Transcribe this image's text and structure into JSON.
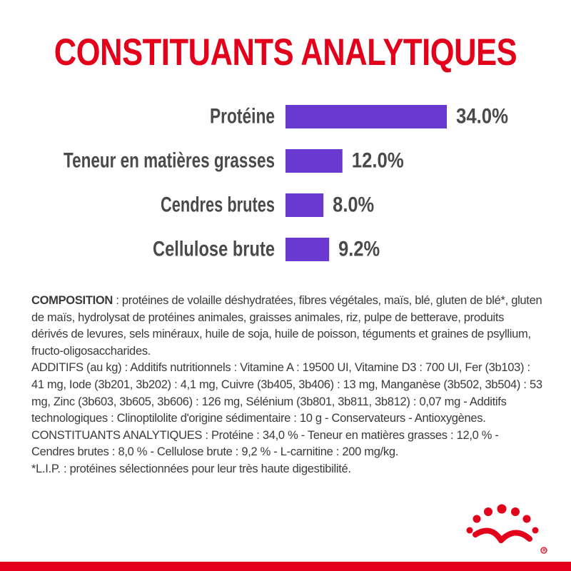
{
  "colors": {
    "brand_red": "#e2001a",
    "bar_purple": "#6a3ad0",
    "label_gray": "#4a4a4a"
  },
  "header": {
    "title": "CONSTITUANTS ANALYTIQUES"
  },
  "chart_data": {
    "type": "bar",
    "orientation": "horizontal",
    "title": "CONSTITUANTS ANALYTIQUES",
    "categories": [
      "Protéine",
      "Teneur en matières grasses",
      "Cendres brutes",
      "Cellulose brute"
    ],
    "values": [
      34.0,
      12.0,
      8.0,
      9.2
    ],
    "value_labels": [
      "34.0%",
      "12.0%",
      "8.0%",
      "9.2%"
    ],
    "unit": "%",
    "grid": false,
    "legend": "none"
  },
  "composition": {
    "composition_label": "COMPOSITION",
    "composition_text": " : protéines de volaille déshydratées, fibres végétales, maïs, blé, gluten de blé*, gluten de maïs, hydrolysat de protéines animales, graisses animales, riz, pulpe de betterave, produits dérivés de levures, sels minéraux, huile de soja, huile de poisson, téguments et graines de psyllium, fructo-oligosaccharides.",
    "additifs_text": "ADDITIFS (au kg) : Additifs nutritionnels : Vitamine A : 19500 UI, Vitamine D3 : 700 UI, Fer (3b103) : 41 mg, Iode (3b201, 3b202) : 4,1 mg, Cuivre (3b405, 3b406) : 13 mg, Manganèse (3b502, 3b504) : 53 mg, Zinc (3b603, 3b605, 3b606) : 126 mg, Sélénium (3b801, 3b811, 3b812) : 0,07 mg - Additifs technologiques : Clinoptilolite d'origine sédimentaire : 10 g - Conservateurs - Antioxygènes.",
    "constituants_text": "CONSTITUANTS ANALYTIQUES : Protéine : 34,0 % - Teneur en matières grasses : 12,0 % - Cendres brutes : 8,0 % - Cellulose brute : 9,2 % - L-carnitine : 200 mg/kg.",
    "footnote_text": "*L.I.P. : protéines sélectionnées pour leur très haute digestibilité."
  },
  "brand": {
    "logo_icon": "royal-canin-crown-icon"
  }
}
